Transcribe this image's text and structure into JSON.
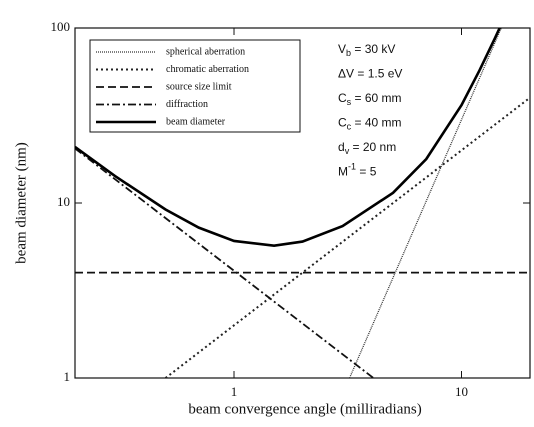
{
  "chart_data": {
    "type": "line",
    "xlabel": "beam convergence angle (milliradians)",
    "ylabel": "beam diameter (nm)",
    "xscale": "log",
    "yscale": "log",
    "xlim": [
      0.2,
      20
    ],
    "ylim": [
      1,
      100
    ],
    "xticks": [
      1,
      10
    ],
    "yticks": [
      1,
      10,
      100
    ],
    "legend": "upper left",
    "series": [
      {
        "name": "spherical aberration",
        "color": "#333333",
        "linestyle": "fine-dotted",
        "x": [
          3.22,
          15
        ],
        "values": [
          1,
          101
        ]
      },
      {
        "name": "chromatic aberration",
        "color": "#222222",
        "linestyle": "dotted",
        "x": [
          0.5,
          20
        ],
        "values": [
          1,
          40
        ]
      },
      {
        "name": "source size limit",
        "color": "#111111",
        "linestyle": "dashed",
        "x": [
          0.2,
          20
        ],
        "values": [
          4,
          4
        ]
      },
      {
        "name": "diffraction",
        "color": "#111111",
        "linestyle": "dash-dot",
        "x": [
          0.2,
          4.1
        ],
        "values": [
          20.5,
          1
        ]
      },
      {
        "name": "beam diameter",
        "color": "#000000",
        "linestyle": "solid",
        "x": [
          0.2,
          0.3,
          0.5,
          0.7,
          1,
          1.5,
          2,
          3,
          5,
          7,
          10,
          12,
          14,
          15
        ],
        "values": [
          20.9,
          14.25,
          9.18,
          7.23,
          6.07,
          5.7,
          6.02,
          7.38,
          11.43,
          17.84,
          36.28,
          57.3,
          87.0,
          105.7
        ]
      }
    ],
    "annotations": [
      {
        "base": "V",
        "sub": "b",
        "rest": " = 30 kV"
      },
      {
        "base": "ΔV = 1.5 eV"
      },
      {
        "base": "C",
        "sub": "s",
        "rest": " = 60 mm"
      },
      {
        "base": "C",
        "sub": "c",
        "rest": " = 40 mm"
      },
      {
        "base": "d",
        "sub": "v",
        "rest": " = 20 nm"
      },
      {
        "base": "M",
        "sup": "-1",
        "rest": " = 5"
      }
    ]
  }
}
